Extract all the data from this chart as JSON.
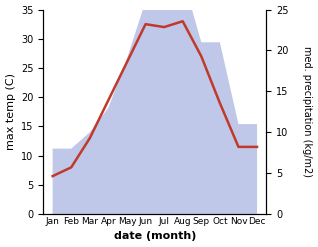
{
  "months": [
    "Jan",
    "Feb",
    "Mar",
    "Apr",
    "May",
    "Jun",
    "Jul",
    "Aug",
    "Sep",
    "Oct",
    "Nov",
    "Dec"
  ],
  "temp": [
    6.5,
    8.0,
    13.0,
    19.5,
    26.0,
    32.5,
    32.0,
    33.0,
    27.0,
    19.0,
    11.5,
    11.5
  ],
  "precip": [
    8,
    8,
    10,
    13,
    19,
    26,
    35,
    29,
    21,
    21,
    11,
    11
  ],
  "temp_color": "#c0392b",
  "precip_fill_color": "#bfc8e8",
  "title": "",
  "xlabel": "date (month)",
  "ylabel_left": "max temp (C)",
  "ylabel_right": "med. precipitation (kg/m2)",
  "ylim_left": [
    0,
    35
  ],
  "ylim_right": [
    0,
    25
  ],
  "yticks_left": [
    0,
    5,
    10,
    15,
    20,
    25,
    30,
    35
  ],
  "yticks_right": [
    0,
    5,
    10,
    15,
    20,
    25
  ],
  "background_color": "#ffffff",
  "temp_linewidth": 1.8
}
